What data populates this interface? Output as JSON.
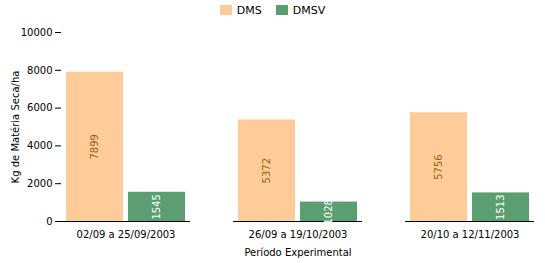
{
  "chart_data": {
    "type": "bar",
    "categories": [
      "02/09 a 25/09/2003",
      "26/09 a 19/10/2003",
      "20/10 a 12/11/2003"
    ],
    "series": [
      {
        "name": "DMS",
        "color": "#FFCC99",
        "values": [
          7899,
          5372,
          5756
        ]
      },
      {
        "name": "DMSV",
        "color": "#5A9E72",
        "values": [
          1545,
          1028,
          1513
        ]
      }
    ],
    "xlabel": "Período Experimental",
    "ylabel": "Kg de Matéria Seca/ha",
    "ylim": [
      0,
      10000
    ],
    "yticks": [
      0,
      2000,
      4000,
      6000,
      8000,
      10000
    ],
    "data_labels": true,
    "grid": false,
    "legend": "top"
  }
}
